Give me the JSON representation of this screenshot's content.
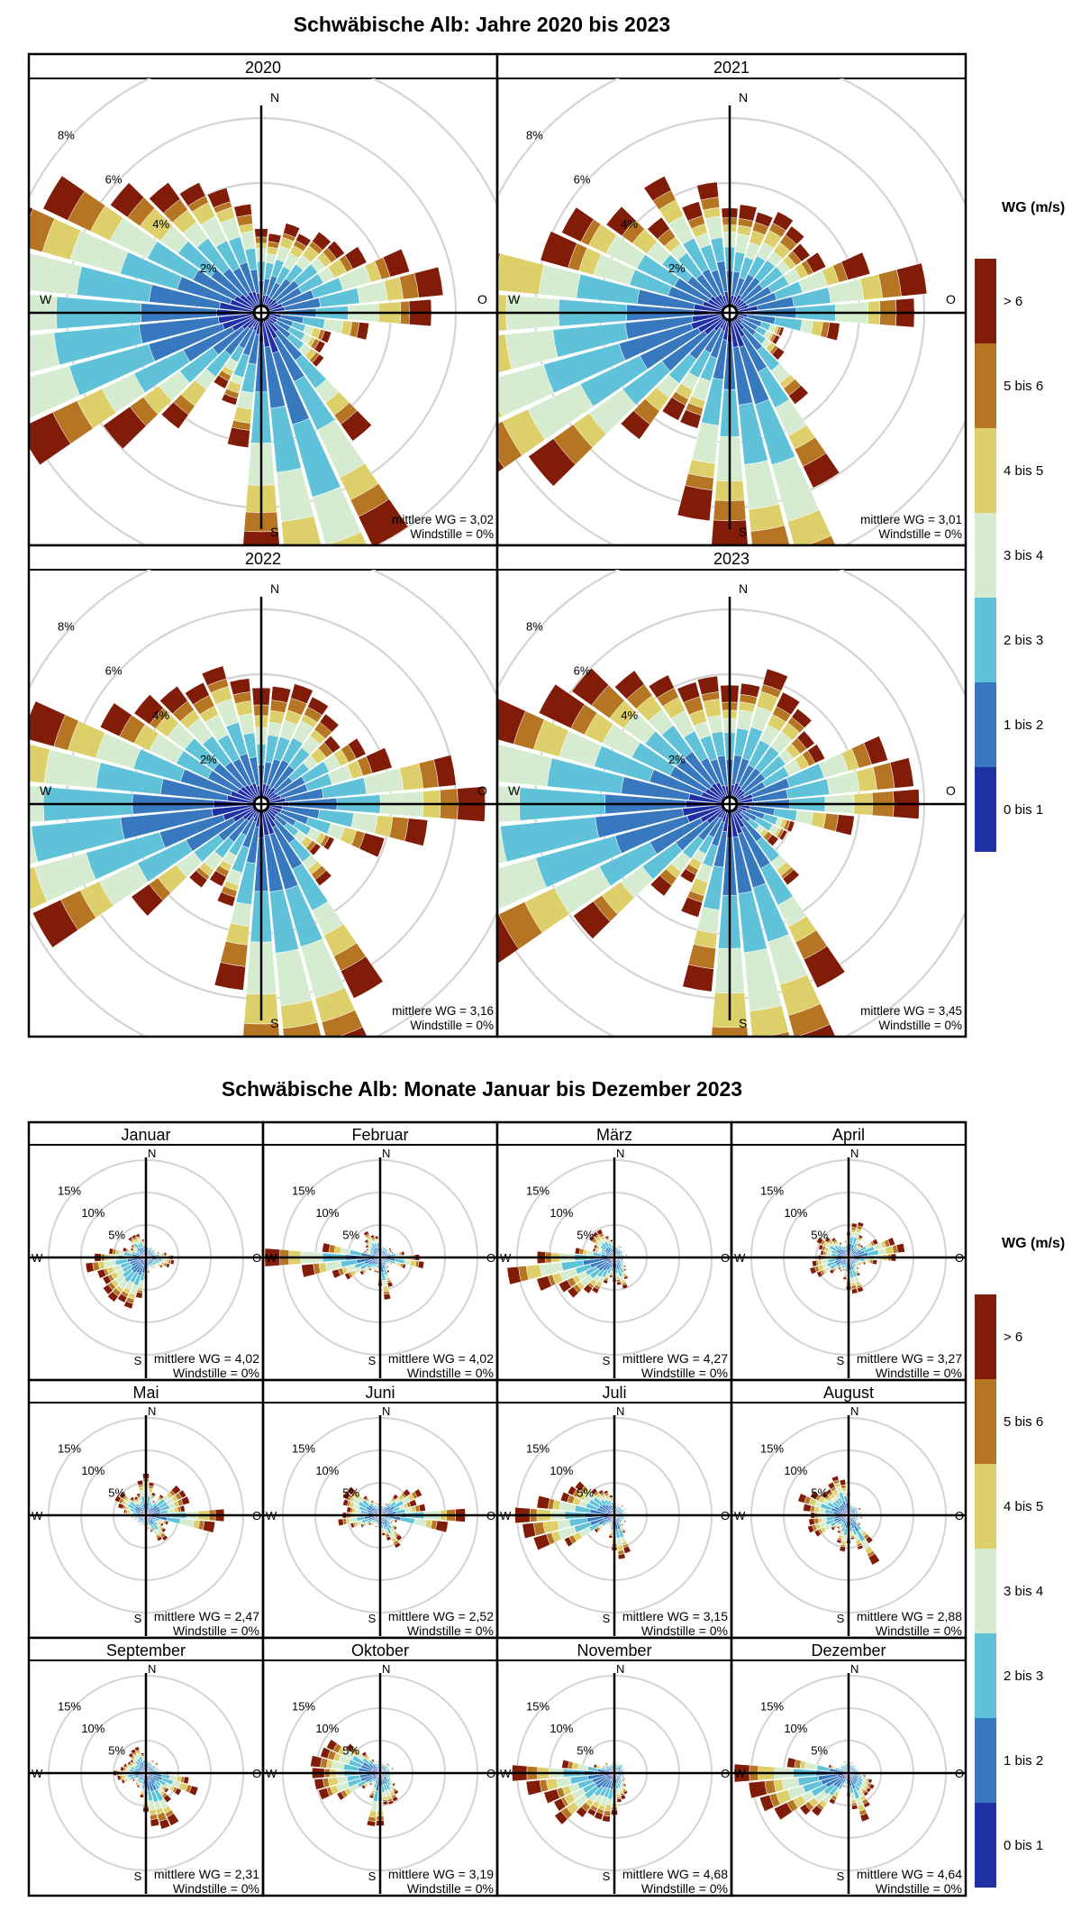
{
  "legend": {
    "title": "WG (m/s)",
    "bins": [
      {
        "label": "0 bis 1",
        "color": "#1f30a4"
      },
      {
        "label": "1 bis 2",
        "color": "#3878bf"
      },
      {
        "label": "2 bis 3",
        "color": "#60c2d8"
      },
      {
        "label": "3 bis 4",
        "color": "#d5ecd0"
      },
      {
        "label": "4 bis 5",
        "color": "#ddd06a"
      },
      {
        "label": "5 bis 6",
        "color": "#b67523"
      },
      {
        "label": "> 6",
        "color": "#801c08"
      }
    ]
  },
  "compass": {
    "n": "N",
    "s": "S",
    "w": "W",
    "o": "O"
  },
  "chart_data": [
    {
      "type": "wind-rose",
      "title": "Schwäbische Alb: Jahre 2020 bis 2023",
      "ring_labels": [
        "2%",
        "4%",
        "6%",
        "8%"
      ],
      "ring_values": [
        2,
        4,
        6,
        8
      ],
      "panels": [
        {
          "label": "2020",
          "mean_text": "mittlere WG = 3,02",
          "calm_text": "Windstille = 0%",
          "seed": 11,
          "lobes": [
            [
              270,
              7.5,
              22
            ],
            [
              247,
              4.8,
              20
            ],
            [
              172,
              6.0,
              15
            ],
            [
              155,
              6.0,
              13
            ],
            [
              83,
              4.0,
              14
            ],
            [
              35,
              1.5,
              30
            ],
            [
              315,
              3.0,
              25
            ]
          ],
          "base": 1.3
        },
        {
          "label": "2021",
          "mean_text": "mittlere WG = 3,01",
          "calm_text": "Windstille = 0%",
          "seed": 23,
          "lobes": [
            [
              268,
              7.6,
              20
            ],
            [
              245,
              5.2,
              20
            ],
            [
              180,
              5.4,
              14
            ],
            [
              158,
              5.0,
              12
            ],
            [
              85,
              4.0,
              12
            ],
            [
              330,
              2.5,
              25
            ],
            [
              40,
              1.8,
              30
            ]
          ],
          "base": 1.3
        },
        {
          "label": "2022",
          "mean_text": "mittlere WG = 3,16",
          "calm_text": "Windstille = 0%",
          "seed": 37,
          "lobes": [
            [
              270,
              7.8,
              18
            ],
            [
              250,
              5.2,
              18
            ],
            [
              180,
              5.0,
              14
            ],
            [
              160,
              6.2,
              12
            ],
            [
              90,
              4.6,
              16
            ],
            [
              320,
              3.0,
              25
            ],
            [
              30,
              2.0,
              30
            ]
          ],
          "base": 1.4
        },
        {
          "label": "2023",
          "mean_text": "mittlere WG = 3,45",
          "calm_text": "Windstille = 0%",
          "seed": 41,
          "lobes": [
            [
              270,
              8.0,
              20
            ],
            [
              250,
              5.8,
              18
            ],
            [
              180,
              5.4,
              14
            ],
            [
              160,
              5.6,
              12
            ],
            [
              85,
              4.0,
              14
            ],
            [
              320,
              2.8,
              25
            ],
            [
              30,
              2.0,
              28
            ]
          ],
          "base": 1.4
        }
      ]
    },
    {
      "type": "wind-rose",
      "title": "Schwäbische Alb: Monate Januar bis Dezember 2023",
      "ring_labels": [
        "5%",
        "10%",
        "15%"
      ],
      "ring_values": [
        5,
        10,
        15
      ],
      "panels": [
        {
          "label": "Januar",
          "mean_text": "mittlere WG = 4,02",
          "calm_text": "Windstille = 0%",
          "seed": 3,
          "lobes": [
            [
              265,
              6.8,
              14
            ],
            [
              230,
              5.6,
              14
            ],
            [
              200,
              6.5,
              12
            ],
            [
              95,
              2.8,
              14
            ],
            [
              330,
              2.0,
              20
            ]
          ],
          "base": 1.4
        },
        {
          "label": "Februar",
          "mean_text": "mittlere WG = 4,02",
          "calm_text": "Windstille = 0%",
          "seed": 5,
          "lobes": [
            [
              270,
              13.5,
              8
            ],
            [
              250,
              6.0,
              14
            ],
            [
              95,
              4.8,
              12
            ],
            [
              170,
              4.0,
              12
            ],
            [
              330,
              2.4,
              18
            ]
          ],
          "base": 1.4
        },
        {
          "label": "März",
          "mean_text": "mittlere WG = 4,27",
          "calm_text": "Windstille = 0%",
          "seed": 7,
          "lobes": [
            [
              265,
              11.5,
              10
            ],
            [
              245,
              7.0,
              14
            ],
            [
              215,
              4.5,
              14
            ],
            [
              165,
              3.5,
              14
            ],
            [
              320,
              3.0,
              20
            ]
          ],
          "base": 1.3
        },
        {
          "label": "April",
          "mean_text": "mittlere WG = 3,27",
          "calm_text": "Windstille = 0%",
          "seed": 9,
          "lobes": [
            [
              80,
              7.5,
              14
            ],
            [
              15,
              4.5,
              14
            ],
            [
              300,
              3.5,
              18
            ],
            [
              250,
              5.0,
              14
            ],
            [
              170,
              4.5,
              14
            ]
          ],
          "base": 1.4
        },
        {
          "label": "Mai",
          "mean_text": "mittlere WG = 2,47",
          "calm_text": "Windstille = 0%",
          "seed": 13,
          "lobes": [
            [
              95,
              10.5,
              8
            ],
            [
              60,
              6.0,
              14
            ],
            [
              0,
              5.0,
              14
            ],
            [
              300,
              3.5,
              18
            ],
            [
              140,
              3.0,
              16
            ]
          ],
          "base": 1.2
        },
        {
          "label": "Juni",
          "mean_text": "mittlere WG = 2,52",
          "calm_text": "Windstille = 0%",
          "seed": 17,
          "lobes": [
            [
              93,
              11.5,
              8
            ],
            [
              60,
              5.5,
              14
            ],
            [
              300,
              5.0,
              16
            ],
            [
              260,
              4.0,
              14
            ],
            [
              150,
              3.5,
              14
            ]
          ],
          "base": 1.3
        },
        {
          "label": "Juli",
          "mean_text": "mittlere WG = 3,15",
          "calm_text": "Windstille = 0%",
          "seed": 19,
          "lobes": [
            [
              270,
              10.5,
              10
            ],
            [
              250,
              9.0,
              12
            ],
            [
              295,
              6.5,
              14
            ],
            [
              170,
              5.5,
              12
            ],
            [
              330,
              3.0,
              16
            ]
          ],
          "base": 1.3
        },
        {
          "label": "August",
          "mean_text": "mittlere WG = 2,88",
          "calm_text": "Windstille = 0%",
          "seed": 29,
          "lobes": [
            [
              150,
              7.5,
              8
            ],
            [
              290,
              5.5,
              16
            ],
            [
              250,
              5.0,
              14
            ],
            [
              190,
              3.5,
              14
            ],
            [
              340,
              4.5,
              14
            ]
          ],
          "base": 1.3
        },
        {
          "label": "September",
          "mean_text": "mittlere WG = 2,31",
          "calm_text": "Windstille = 0%",
          "seed": 31,
          "lobes": [
            [
              110,
              6.0,
              12
            ],
            [
              170,
              5.5,
              14
            ],
            [
              150,
              5.0,
              10
            ],
            [
              270,
              3.0,
              16
            ],
            [
              330,
              2.5,
              16
            ]
          ],
          "base": 1.5
        },
        {
          "label": "Oktober",
          "mean_text": "mittlere WG = 3,19",
          "calm_text": "Windstille = 0%",
          "seed": 43,
          "lobes": [
            [
              250,
              8.5,
              12
            ],
            [
              275,
              6.0,
              12
            ],
            [
              300,
              6.5,
              14
            ],
            [
              185,
              7.5,
              10
            ],
            [
              150,
              3.5,
              14
            ]
          ],
          "base": 1.3
        },
        {
          "label": "November",
          "mean_text": "mittlere WG = 4,68",
          "calm_text": "Windstille = 0%",
          "seed": 47,
          "lobes": [
            [
              270,
              11.5,
              10
            ],
            [
              250,
              8.5,
              12
            ],
            [
              225,
              7.0,
              12
            ],
            [
              195,
              6.5,
              12
            ],
            [
              160,
              3.0,
              14
            ]
          ],
          "base": 1.2
        },
        {
          "label": "Dezember",
          "mean_text": "mittlere WG = 4,64",
          "calm_text": "Windstille = 0%",
          "seed": 53,
          "lobes": [
            [
              270,
              13.0,
              10
            ],
            [
              250,
              9.5,
              12
            ],
            [
              225,
              6.5,
              12
            ],
            [
              160,
              5.5,
              14
            ],
            [
              120,
              3.0,
              14
            ]
          ],
          "base": 1.2
        }
      ]
    }
  ]
}
